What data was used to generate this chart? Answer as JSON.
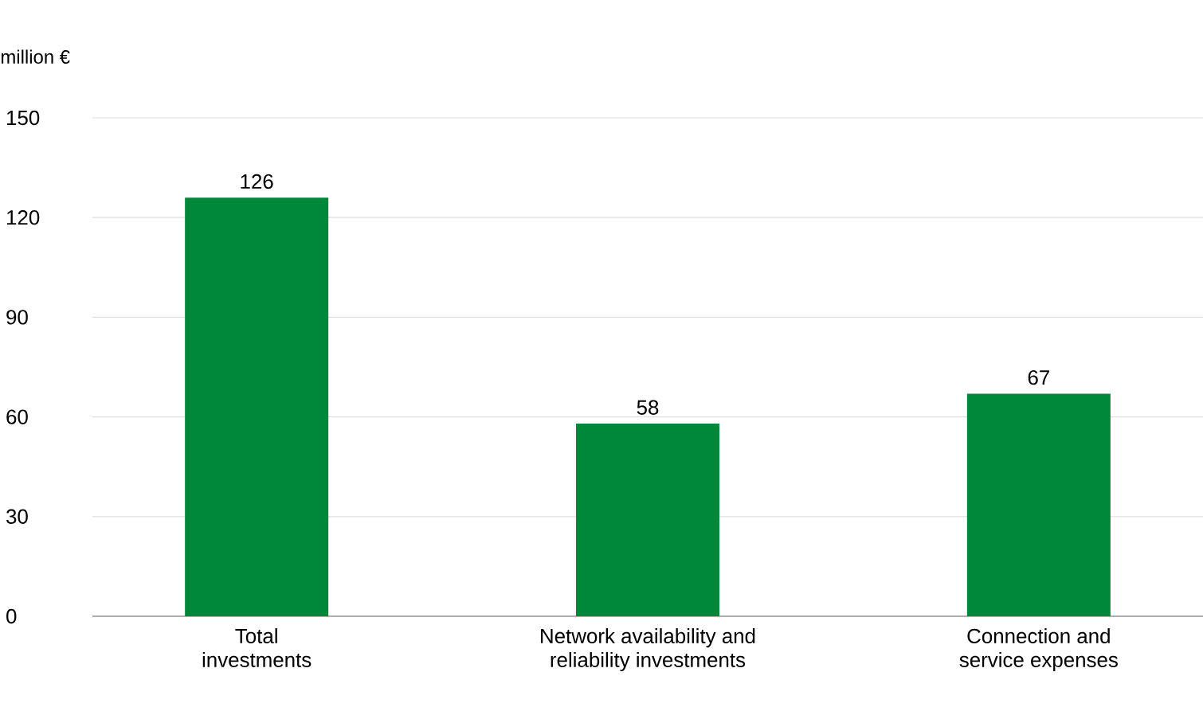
{
  "chart_data": {
    "type": "bar",
    "ylabel": "million €",
    "categories": [
      "Total investments",
      "Network availability and reliability investments",
      "Connection and service expenses"
    ],
    "values": [
      126,
      58,
      67
    ],
    "color": "#00883a",
    "ylim": [
      0,
      150
    ],
    "yticks": [
      0,
      30,
      60,
      90,
      120,
      150
    ],
    "grid": "y",
    "data_labels": true
  }
}
